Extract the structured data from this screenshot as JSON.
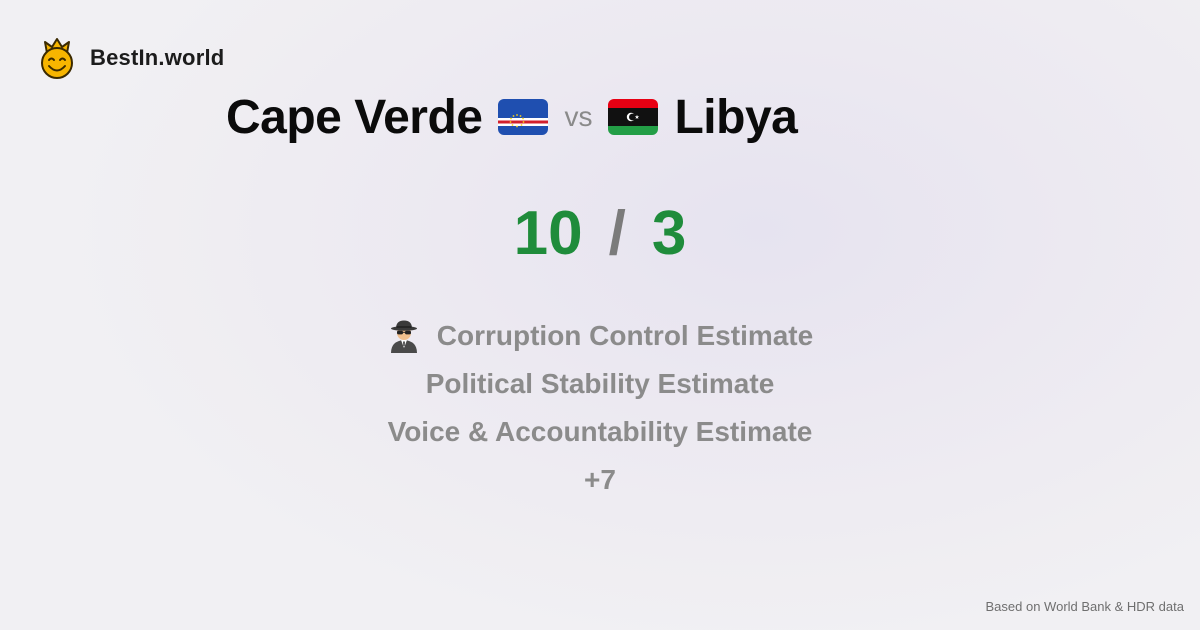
{
  "brand": {
    "name": "BestIn.world",
    "icon": "crowned-smiley-icon"
  },
  "comparison": {
    "country_a": {
      "name": "Cape Verde",
      "flag": "cape-verde-flag-icon"
    },
    "vs_label": "vs",
    "country_b": {
      "name": "Libya",
      "flag": "libya-flag-icon"
    }
  },
  "score": {
    "a": "10",
    "separator": "/",
    "b": "3"
  },
  "criteria": [
    {
      "label": "Corruption Control Estimate",
      "icon": "spy-icon"
    },
    {
      "label": "Political Stability Estimate"
    },
    {
      "label": "Voice & Accountability Estimate"
    },
    {
      "label": "+7"
    }
  ],
  "footer": {
    "source": "Based on World Bank & HDR data"
  },
  "colors": {
    "score": "#1f8c3b",
    "separator": "#7b7b7b",
    "criteria_text": "#8b8b8b"
  }
}
